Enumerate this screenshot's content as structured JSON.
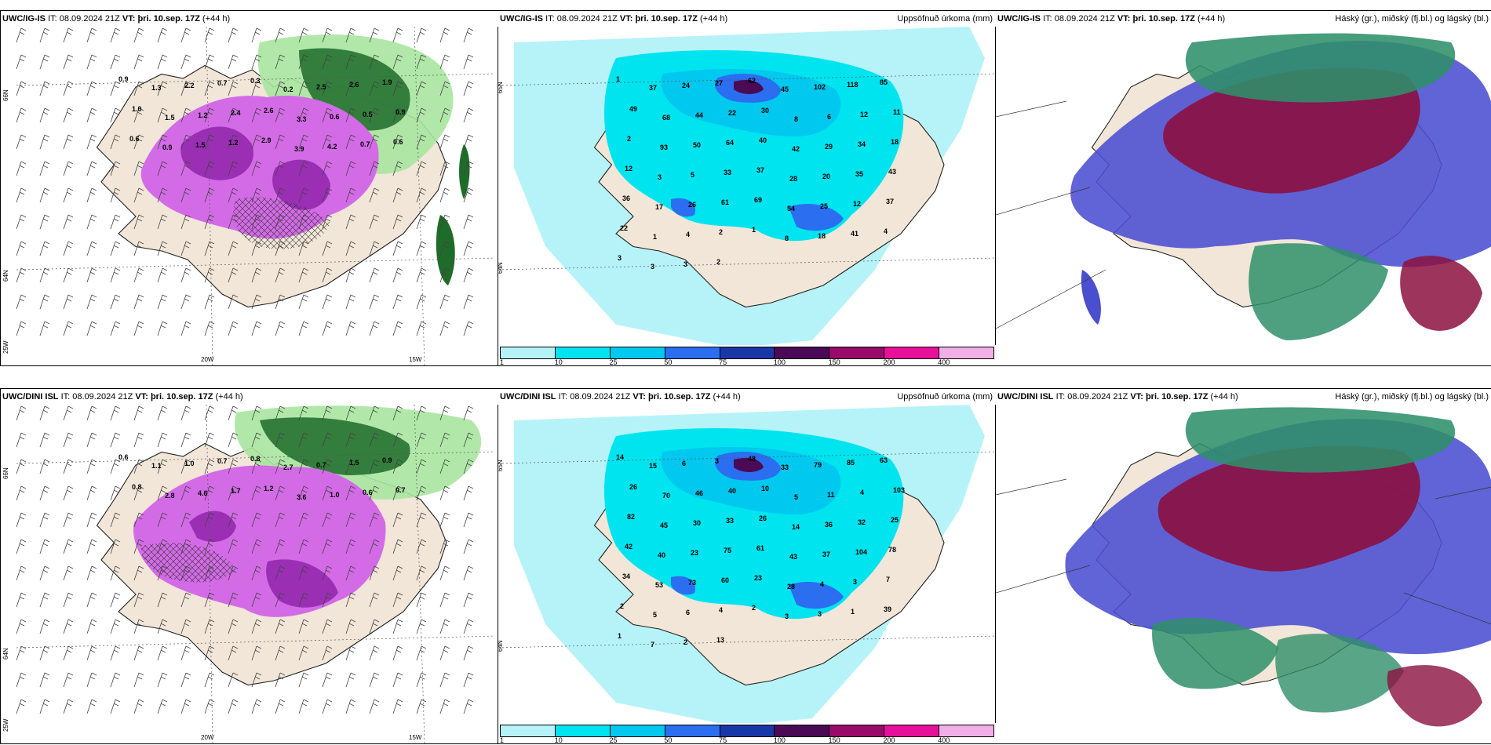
{
  "colors": {
    "land": "#f1e6d8",
    "ocean": "#ffffff",
    "precip_light_green": "#a8e6a0",
    "precip_dark_green": "#1f6b2a",
    "snow_magenta": "#d36be6",
    "snow_dark": "#9b2fb4",
    "cyan_base": "#00e4f0",
    "cyan_light": "#b6f3f8",
    "blue_mid": "#2b6ef0",
    "blue_dark": "#1838a8",
    "high_cloud_green": "#2f8f6a",
    "mid_cloud_red": "#8c1040",
    "low_cloud_blue": "#4a4fd0"
  },
  "icons": [
    "wind-barb-icon"
  ],
  "panels": [
    {
      "id": "top-left",
      "header": {
        "model": "UWC/IG-IS",
        "it_label": "IT:",
        "it_value": "08.09.2024 21Z",
        "vt_label": "VT:",
        "vt_value": "þri. 10.sep. 17Z",
        "lead": "(+44 h)",
        "right": ""
      },
      "lat_labels": [
        "66N",
        "64N",
        "25W"
      ],
      "lon_labels": [
        "20W",
        "15W"
      ],
      "values": [
        "0.9",
        "1.3",
        "2.2",
        "0.7",
        "0.3",
        "0.2",
        "2.5",
        "2.6",
        "1.9",
        "1.0",
        "1.5",
        "1.2",
        "2.4",
        "2.6",
        "3.3",
        "0.6",
        "0.5",
        "0.9",
        "0.6",
        "0.9",
        "1.5",
        "1.2",
        "2.9",
        "3.9",
        "4.2",
        "0.7",
        "0.6"
      ]
    },
    {
      "id": "top-middle",
      "header": {
        "model": "UWC/IG-IS",
        "it_label": "IT:",
        "it_value": "08.09.2024 21Z",
        "vt_label": "VT:",
        "vt_value": "þri. 10.sep. 17Z",
        "lead": "(+44 h)",
        "right": "Uppsöfnuð úrkoma (mm)"
      },
      "lat_labels": [
        "65N",
        "64N"
      ],
      "values": [
        "1",
        "37",
        "24",
        "27",
        "62",
        "45",
        "102",
        "118",
        "85",
        "49",
        "68",
        "44",
        "22",
        "30",
        "8",
        "6",
        "12",
        "11",
        "2",
        "93",
        "50",
        "64",
        "40",
        "42",
        "29",
        "34",
        "18",
        "12",
        "3",
        "5",
        "33",
        "37",
        "28",
        "20",
        "35",
        "43",
        "36",
        "17",
        "26",
        "61",
        "69",
        "54",
        "25",
        "12",
        "37",
        "22",
        "1",
        "4",
        "2",
        "1",
        "8",
        "18",
        "41",
        "4",
        "3",
        "3",
        "3",
        "2"
      ],
      "colorbar": {
        "ticks": [
          "1",
          "10",
          "25",
          "50",
          "75",
          "100",
          "150",
          "200",
          "400"
        ],
        "colors": [
          "#b6f3f8",
          "#00e4f0",
          "#00c8ee",
          "#2b6ef0",
          "#1838a8",
          "#4b0a55",
          "#990a6a",
          "#e6109a",
          "#f0b0e6"
        ]
      }
    },
    {
      "id": "top-right",
      "header": {
        "model": "UWC/IG-IS",
        "it_label": "IT:",
        "it_value": "08.09.2024 21Z",
        "vt_label": "VT:",
        "vt_value": "þri. 10.sep. 17Z",
        "lead": "(+44 h)",
        "right": "Háský (gr.), miðský (fj.bl.) og lágský (bl.)"
      }
    },
    {
      "id": "bottom-left",
      "header": {
        "model": "UWC/DINI ISL",
        "it_label": "IT:",
        "it_value": "08.09.2024 21Z",
        "vt_label": "VT:",
        "vt_value": "þri. 10.sep. 17Z",
        "lead": "(+44 h)",
        "right": ""
      },
      "lat_labels": [
        "66N",
        "64N",
        "25W"
      ],
      "lon_labels": [
        "20W",
        "15W"
      ],
      "values": [
        "0.6",
        "1.1",
        "1.0",
        "0.7",
        "0.8",
        "2.7",
        "0.7",
        "1.5",
        "0.9",
        "0.8",
        "2.8",
        "4.6",
        "1.7",
        "1.2",
        "3.6",
        "1.0",
        "0.6",
        "0.7"
      ]
    },
    {
      "id": "bottom-middle",
      "header": {
        "model": "UWC/DINI ISL",
        "it_label": "IT:",
        "it_value": "08.09.2024 21Z",
        "vt_label": "VT:",
        "vt_value": "þri. 10.sep. 17Z",
        "lead": "(+44 h)",
        "right": "Uppsöfnuð úrkoma (mm)"
      },
      "lat_labels": [
        "65N",
        "64N"
      ],
      "values": [
        "14",
        "15",
        "6",
        "3",
        "48",
        "33",
        "79",
        "85",
        "63",
        "26",
        "70",
        "46",
        "40",
        "10",
        "5",
        "11",
        "4",
        "103",
        "82",
        "45",
        "30",
        "33",
        "26",
        "14",
        "36",
        "32",
        "25",
        "42",
        "40",
        "23",
        "75",
        "61",
        "43",
        "37",
        "104",
        "78",
        "34",
        "53",
        "73",
        "60",
        "23",
        "28",
        "4",
        "3",
        "7",
        "2",
        "5",
        "6",
        "4",
        "2",
        "3",
        "3",
        "1",
        "39",
        "1",
        "7",
        "2",
        "13"
      ],
      "colorbar": {
        "ticks": [
          "1",
          "10",
          "25",
          "50",
          "75",
          "100",
          "150",
          "200",
          "400"
        ],
        "colors": [
          "#b6f3f8",
          "#00e4f0",
          "#00c8ee",
          "#2b6ef0",
          "#1838a8",
          "#4b0a55",
          "#990a6a",
          "#e6109a",
          "#f0b0e6"
        ]
      }
    },
    {
      "id": "bottom-right",
      "header": {
        "model": "UWC/DINI ISL",
        "it_label": "IT:",
        "it_value": "08.09.2024 21Z",
        "vt_label": "VT:",
        "vt_value": "þri. 10.sep. 17Z",
        "lead": "(+44 h)",
        "right": "Háský (gr.), miðský (fj.bl.) og lágský (bl.)"
      }
    }
  ]
}
